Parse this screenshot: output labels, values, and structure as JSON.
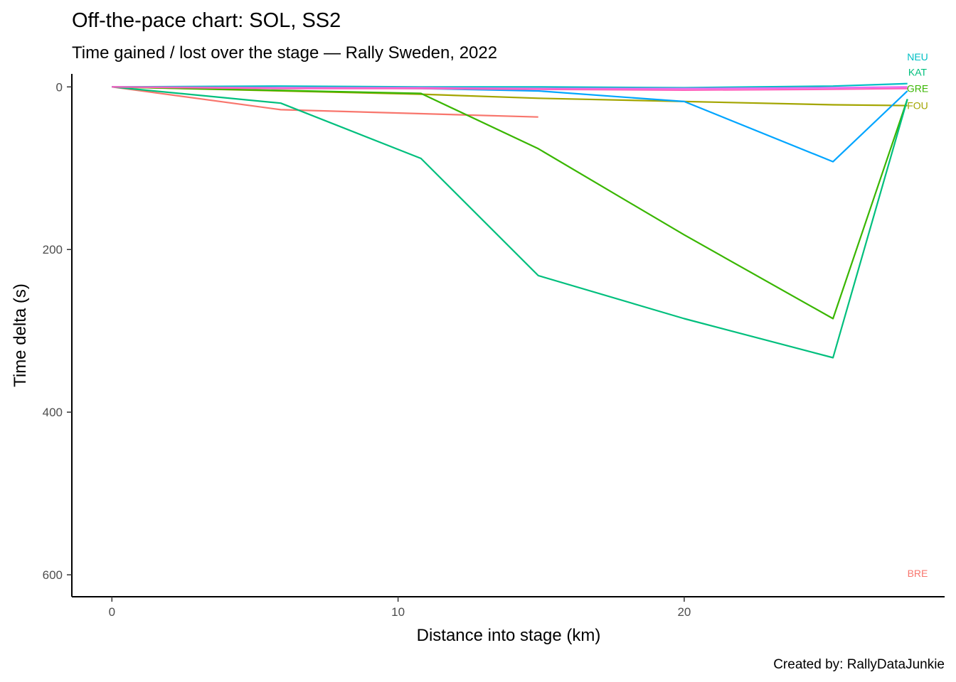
{
  "chart_data": {
    "type": "line",
    "title": "Off-the-pace chart: SOL, SS2",
    "subtitle": "Time gained / lost over the stage — Rally Sweden, 2022",
    "xlabel": "Distance into stage (km)",
    "ylabel": "Time delta (s)",
    "caption": "Created by: RallyDataJunkie",
    "xlim": [
      -1.4,
      29.1
    ],
    "ylim": [
      -16,
      627
    ],
    "y_reversed": true,
    "x_ticks": [
      0,
      10,
      20
    ],
    "y_ticks": [
      0,
      200,
      400,
      600
    ],
    "grid": false,
    "legend": "none",
    "series": [
      {
        "name": "BRE",
        "color": "#F8766D",
        "label_y": 598,
        "x": [
          0,
          5.9,
          14.9
        ],
        "y": [
          0,
          28,
          37
        ]
      },
      {
        "name": "FOU",
        "color": "#A3A500",
        "label_y": 23,
        "x": [
          0,
          10.8,
          14.9,
          25.2,
          27.8
        ],
        "y": [
          0,
          9,
          14,
          22,
          23
        ]
      },
      {
        "name": "GRE",
        "color": "#39B600",
        "label_y": 2,
        "x": [
          0,
          10.8,
          14.9,
          20.0,
          25.2,
          27.8
        ],
        "y": [
          0,
          8,
          76,
          182,
          285,
          15
        ]
      },
      {
        "name": "KAT",
        "color": "#00BF7D",
        "label_y": -18,
        "x": [
          0,
          5.9,
          10.8,
          14.9,
          20.0,
          25.2,
          27.8
        ],
        "y": [
          0,
          20,
          88,
          232,
          285,
          333,
          15
        ]
      },
      {
        "name": "NEU",
        "color": "#00BFC4",
        "label_y": -37,
        "x": [
          0,
          5.9,
          10.8,
          14.9,
          20.0,
          25.2,
          27.8
        ],
        "y": [
          0,
          -1,
          0,
          0,
          1,
          -1,
          -4
        ]
      },
      {
        "name": "",
        "color": "#00A5FF",
        "x": [
          0,
          5.9,
          10.8,
          14.9,
          20.0,
          25.2,
          27.8
        ],
        "y": [
          0,
          1,
          2,
          5,
          18,
          92,
          5
        ]
      },
      {
        "name": "",
        "color": "#E76BF3",
        "x": [
          0,
          5.9,
          10.8,
          14.9,
          20.0,
          25.2,
          27.8
        ],
        "y": [
          0,
          1,
          1,
          2,
          2,
          1,
          0
        ]
      },
      {
        "name": "",
        "color": "#FF62BC",
        "x": [
          0,
          5.9,
          10.8,
          14.9,
          20.0,
          25.2,
          27.8
        ],
        "y": [
          0,
          2,
          2,
          3,
          4,
          3,
          2
        ]
      }
    ]
  }
}
